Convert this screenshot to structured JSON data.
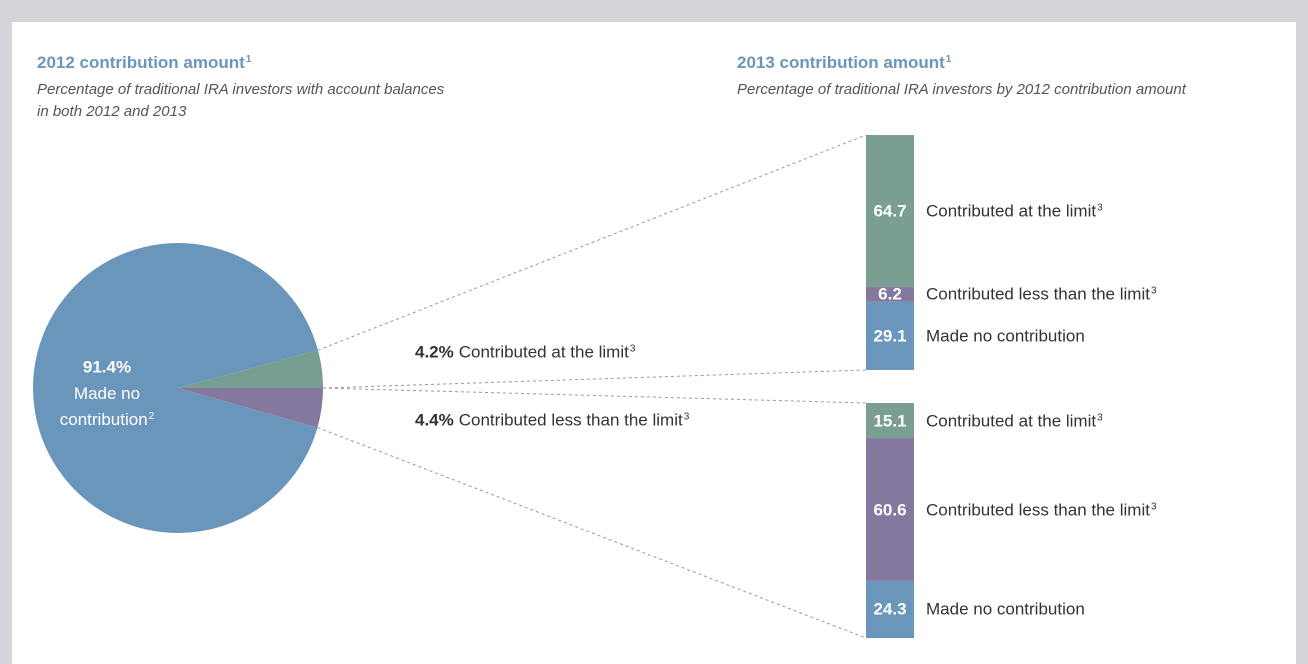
{
  "chart_data": [
    {
      "type": "pie",
      "title": "2012 contribution amount",
      "title_note": "1",
      "subtitle": [
        "Percentage of traditional IRA investors with account balances",
        "in both 2012 and 2013"
      ],
      "categories": [
        "Made no contribution",
        "Contributed less than the limit",
        "Contributed at the limit"
      ],
      "notes": [
        "2",
        "3",
        "3"
      ],
      "values": [
        91.4,
        4.4,
        4.2
      ],
      "value_labels": [
        "91.4%",
        "4.4%",
        "4.2%"
      ],
      "colors": [
        "#6a96bb",
        "#85789e",
        "#789e92"
      ]
    },
    {
      "type": "stacked-bar",
      "title": "2013 contribution amount",
      "title_note": "1",
      "subtitle": [
        "Percentage of traditional IRA investors by 2012 contribution amount"
      ],
      "categories": [
        null,
        null
      ],
      "series": [
        {
          "name": "Made no contribution",
          "color": "#6a96bb",
          "values": [
            29.1,
            24.3
          ]
        },
        {
          "name": "Contributed less than the limit",
          "note": "3",
          "color": "#85789e",
          "values": [
            6.2,
            60.6
          ]
        },
        {
          "name": "Contributed at the limit",
          "note": "3",
          "color": "#7a9e92",
          "values": [
            64.7,
            15.1
          ]
        }
      ],
      "ylim": [
        0,
        100
      ]
    }
  ]
}
